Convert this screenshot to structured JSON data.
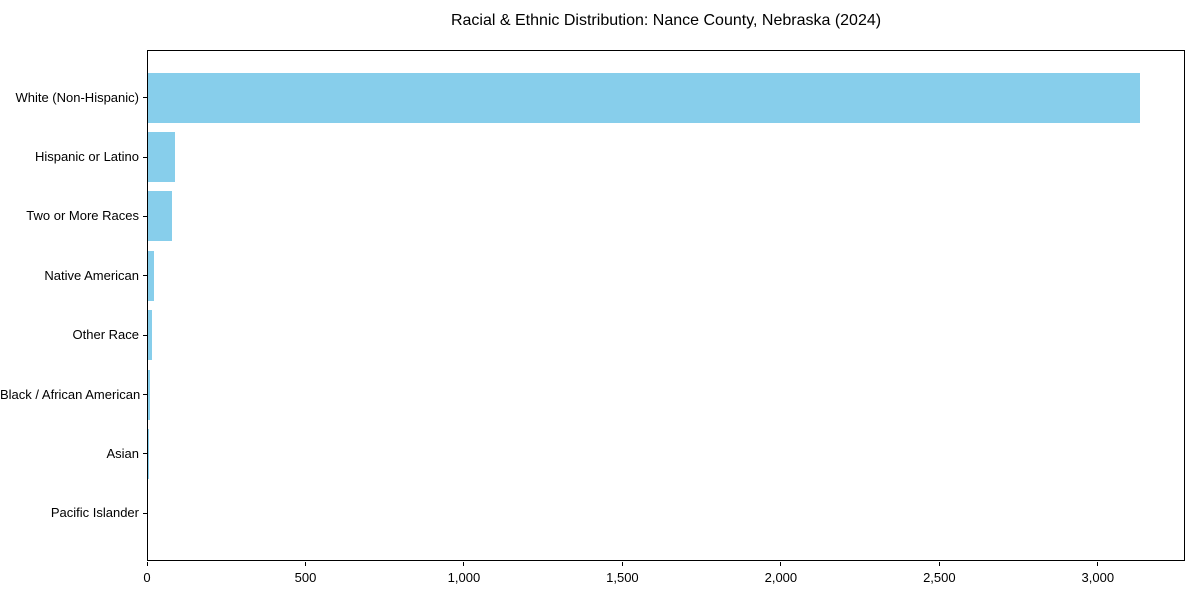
{
  "title": "Racial & Ethnic Distribution: Nance County, Nebraska (2024)",
  "colors": {
    "bar": "#87CEEB",
    "spine": "#000000",
    "text": "#000000",
    "background": "#FFFFFF"
  },
  "chart_data": {
    "type": "bar",
    "orientation": "horizontal",
    "title": "Racial & Ethnic Distribution: Nance County, Nebraska (2024)",
    "xlabel": "",
    "ylabel": "",
    "categories": [
      "White (Non-Hispanic)",
      "Hispanic or Latino",
      "Two or More Races",
      "Native American",
      "Other Race",
      "Black / African American",
      "Asian",
      "Pacific Islander"
    ],
    "values": [
      3130,
      85,
      75,
      19,
      13,
      5,
      3,
      0
    ],
    "xlim": [
      0,
      3275
    ],
    "x_ticks": [
      0,
      500,
      1000,
      1500,
      2000,
      2500,
      3000
    ],
    "x_tick_labels": [
      "0",
      "500",
      "1,000",
      "1,500",
      "2,000",
      "2,500",
      "3,000"
    ],
    "grid": false,
    "legend": null,
    "bar_color": "#87CEEB"
  }
}
